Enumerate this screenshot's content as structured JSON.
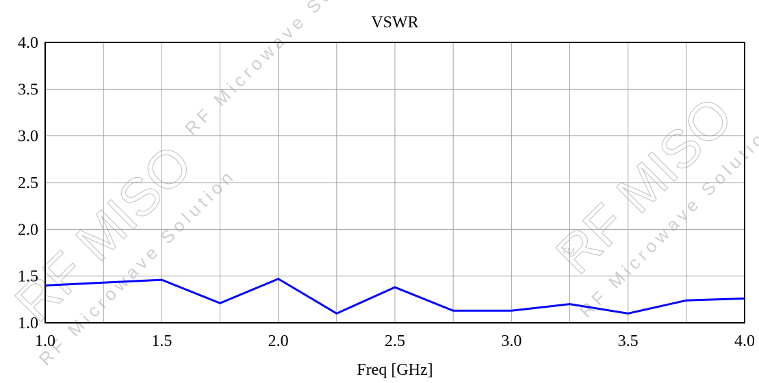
{
  "chart_data": {
    "type": "line",
    "title": "VSWR",
    "xlabel": "Freq [GHz]",
    "ylabel": "",
    "xlim": [
      1.0,
      4.0
    ],
    "ylim": [
      1.0,
      4.0
    ],
    "x_ticks": [
      "1.0",
      "1.5",
      "2.0",
      "2.5",
      "3.0",
      "3.5",
      "4.0"
    ],
    "y_ticks": [
      "1.0",
      "1.5",
      "2.0",
      "2.5",
      "3.0",
      "3.5",
      "4.0"
    ],
    "grid": true,
    "series": [
      {
        "color": "#0000ff",
        "x": [
          1.0,
          1.5,
          1.75,
          2.0,
          2.25,
          2.5,
          2.75,
          3.0,
          3.25,
          3.5,
          3.75,
          4.0
        ],
        "y": [
          1.4,
          1.46,
          1.21,
          1.47,
          1.1,
          1.38,
          1.13,
          1.13,
          1.2,
          1.1,
          1.24,
          1.26
        ]
      }
    ]
  },
  "watermark": {
    "brand": "RF MISO",
    "tagline": "RF Microwave Solution",
    "trademark": "TM"
  }
}
